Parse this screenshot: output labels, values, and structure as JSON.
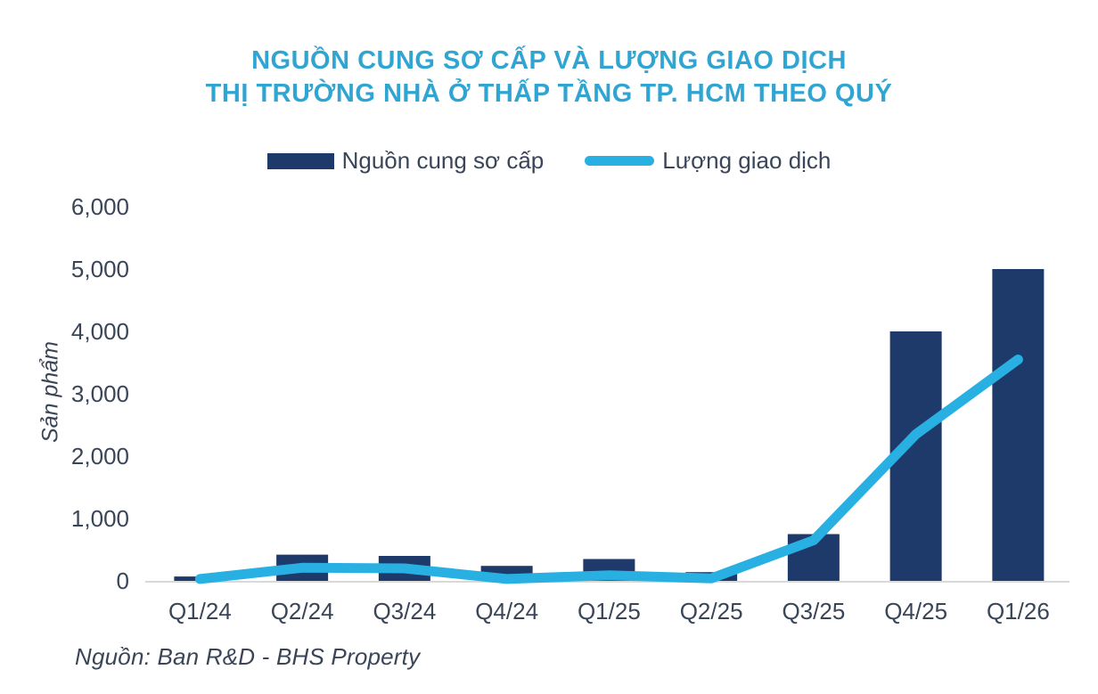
{
  "title": {
    "line1": "NGUỒN CUNG SƠ CẤP VÀ LƯỢNG GIAO DỊCH",
    "line2": "THỊ TRƯỜNG NHÀ Ở THẤP TẦNG TP. HCM THEO QUÝ"
  },
  "source": "Nguồn: Ban R&D - BHS Property",
  "colors": {
    "title": "#31A5D2",
    "bar": "#1D3A6B",
    "line": "#29B0E2",
    "axis_text": "#3A4558",
    "axis_line": "#D9D9D9",
    "background": "#FFFFFF"
  },
  "chart_data": {
    "type": "bar",
    "subtype": "combo-bar-line",
    "title": "NGUỒN CUNG SƠ CẤP VÀ LƯỢNG GIAO DỊCH THỊ TRƯỜNG NHÀ Ở THẤP TẦNG TP. HCM THEO QUÝ",
    "categories": [
      "Q1/24",
      "Q2/24",
      "Q3/24",
      "Q4/24",
      "Q1/25",
      "Q2/25",
      "Q3/25",
      "Q4/25",
      "Q1/26"
    ],
    "series": [
      {
        "name": "Nguồn cung sơ cấp",
        "type": "bar",
        "color": "#1D3A6B",
        "values": [
          70,
          420,
          400,
          240,
          350,
          140,
          750,
          4000,
          5000
        ]
      },
      {
        "name": "Lượng giao dịch",
        "type": "line",
        "color": "#29B0E2",
        "values": [
          30,
          210,
          200,
          30,
          90,
          40,
          650,
          2350,
          3550
        ]
      }
    ],
    "xlabel": "",
    "ylabel": "Sản phẩm",
    "ylim": [
      0,
      6000
    ],
    "ytick_step": 1000,
    "ytick_labels": [
      "0",
      "1,000",
      "2,000",
      "3,000",
      "4,000",
      "5,000",
      "6,000"
    ],
    "grid": false,
    "legend_position": "top"
  }
}
